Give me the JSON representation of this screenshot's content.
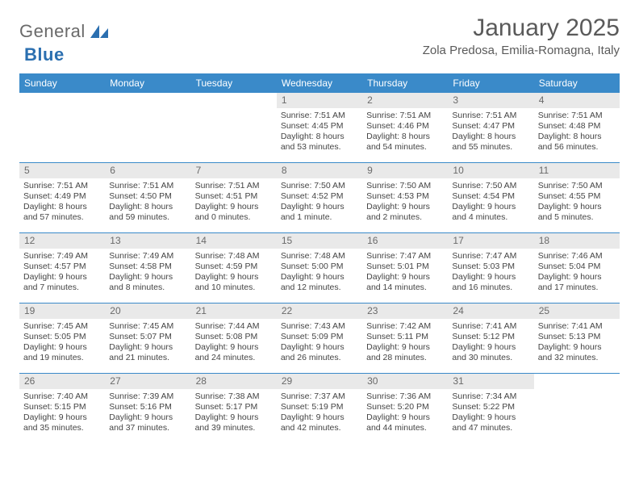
{
  "brand": {
    "word1": "General",
    "word2": "Blue",
    "icon_fill": "#2b6fb0"
  },
  "title": "January 2025",
  "location": "Zola Predosa, Emilia-Romagna, Italy",
  "colors": {
    "header_bg": "#3a8ac9",
    "header_fg": "#ffffff",
    "rule": "#3a8ac9",
    "daynum_bg": "#e9e9e9",
    "text": "#444444"
  },
  "weekdays": [
    "Sunday",
    "Monday",
    "Tuesday",
    "Wednesday",
    "Thursday",
    "Friday",
    "Saturday"
  ],
  "weeks": [
    [
      null,
      null,
      null,
      {
        "n": "1",
        "sr": "7:51 AM",
        "ss": "4:45 PM",
        "dl": "8 hours and 53 minutes."
      },
      {
        "n": "2",
        "sr": "7:51 AM",
        "ss": "4:46 PM",
        "dl": "8 hours and 54 minutes."
      },
      {
        "n": "3",
        "sr": "7:51 AM",
        "ss": "4:47 PM",
        "dl": "8 hours and 55 minutes."
      },
      {
        "n": "4",
        "sr": "7:51 AM",
        "ss": "4:48 PM",
        "dl": "8 hours and 56 minutes."
      }
    ],
    [
      {
        "n": "5",
        "sr": "7:51 AM",
        "ss": "4:49 PM",
        "dl": "8 hours and 57 minutes."
      },
      {
        "n": "6",
        "sr": "7:51 AM",
        "ss": "4:50 PM",
        "dl": "8 hours and 59 minutes."
      },
      {
        "n": "7",
        "sr": "7:51 AM",
        "ss": "4:51 PM",
        "dl": "9 hours and 0 minutes."
      },
      {
        "n": "8",
        "sr": "7:50 AM",
        "ss": "4:52 PM",
        "dl": "9 hours and 1 minute."
      },
      {
        "n": "9",
        "sr": "7:50 AM",
        "ss": "4:53 PM",
        "dl": "9 hours and 2 minutes."
      },
      {
        "n": "10",
        "sr": "7:50 AM",
        "ss": "4:54 PM",
        "dl": "9 hours and 4 minutes."
      },
      {
        "n": "11",
        "sr": "7:50 AM",
        "ss": "4:55 PM",
        "dl": "9 hours and 5 minutes."
      }
    ],
    [
      {
        "n": "12",
        "sr": "7:49 AM",
        "ss": "4:57 PM",
        "dl": "9 hours and 7 minutes."
      },
      {
        "n": "13",
        "sr": "7:49 AM",
        "ss": "4:58 PM",
        "dl": "9 hours and 8 minutes."
      },
      {
        "n": "14",
        "sr": "7:48 AM",
        "ss": "4:59 PM",
        "dl": "9 hours and 10 minutes."
      },
      {
        "n": "15",
        "sr": "7:48 AM",
        "ss": "5:00 PM",
        "dl": "9 hours and 12 minutes."
      },
      {
        "n": "16",
        "sr": "7:47 AM",
        "ss": "5:01 PM",
        "dl": "9 hours and 14 minutes."
      },
      {
        "n": "17",
        "sr": "7:47 AM",
        "ss": "5:03 PM",
        "dl": "9 hours and 16 minutes."
      },
      {
        "n": "18",
        "sr": "7:46 AM",
        "ss": "5:04 PM",
        "dl": "9 hours and 17 minutes."
      }
    ],
    [
      {
        "n": "19",
        "sr": "7:45 AM",
        "ss": "5:05 PM",
        "dl": "9 hours and 19 minutes."
      },
      {
        "n": "20",
        "sr": "7:45 AM",
        "ss": "5:07 PM",
        "dl": "9 hours and 21 minutes."
      },
      {
        "n": "21",
        "sr": "7:44 AM",
        "ss": "5:08 PM",
        "dl": "9 hours and 24 minutes."
      },
      {
        "n": "22",
        "sr": "7:43 AM",
        "ss": "5:09 PM",
        "dl": "9 hours and 26 minutes."
      },
      {
        "n": "23",
        "sr": "7:42 AM",
        "ss": "5:11 PM",
        "dl": "9 hours and 28 minutes."
      },
      {
        "n": "24",
        "sr": "7:41 AM",
        "ss": "5:12 PM",
        "dl": "9 hours and 30 minutes."
      },
      {
        "n": "25",
        "sr": "7:41 AM",
        "ss": "5:13 PM",
        "dl": "9 hours and 32 minutes."
      }
    ],
    [
      {
        "n": "26",
        "sr": "7:40 AM",
        "ss": "5:15 PM",
        "dl": "9 hours and 35 minutes."
      },
      {
        "n": "27",
        "sr": "7:39 AM",
        "ss": "5:16 PM",
        "dl": "9 hours and 37 minutes."
      },
      {
        "n": "28",
        "sr": "7:38 AM",
        "ss": "5:17 PM",
        "dl": "9 hours and 39 minutes."
      },
      {
        "n": "29",
        "sr": "7:37 AM",
        "ss": "5:19 PM",
        "dl": "9 hours and 42 minutes."
      },
      {
        "n": "30",
        "sr": "7:36 AM",
        "ss": "5:20 PM",
        "dl": "9 hours and 44 minutes."
      },
      {
        "n": "31",
        "sr": "7:34 AM",
        "ss": "5:22 PM",
        "dl": "9 hours and 47 minutes."
      },
      null
    ]
  ],
  "labels": {
    "sunrise": "Sunrise: ",
    "sunset": "Sunset: ",
    "daylight": "Daylight: "
  }
}
